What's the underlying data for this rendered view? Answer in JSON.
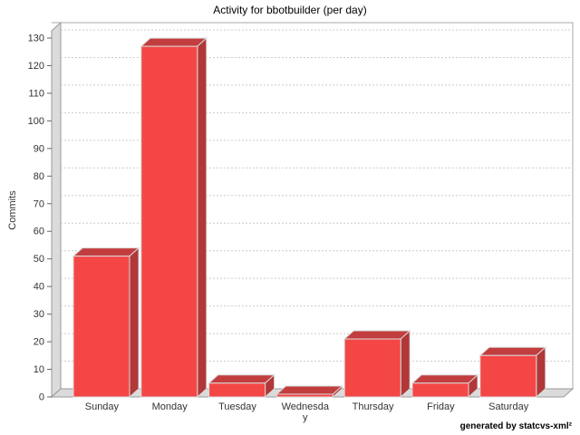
{
  "window": {
    "background": "#ffffff"
  },
  "header": {
    "title": "Activity for bbotbuilder (per day)"
  },
  "footer": {
    "credit": "generated by statcvs-xml²"
  },
  "chart_data": {
    "type": "bar",
    "title": "Activity for bbotbuilder (per day)",
    "xlabel": "",
    "ylabel": "Commits",
    "categories": [
      "Sunday",
      "Monday",
      "Tuesday",
      "Wednesday",
      "Thursday",
      "Friday",
      "Saturday"
    ],
    "category_label_lines": [
      [
        "Sunday"
      ],
      [
        "Monday"
      ],
      [
        "Tuesday"
      ],
      [
        "Wednesda",
        "y"
      ],
      [
        "Thursday"
      ],
      [
        "Friday"
      ],
      [
        "Saturday"
      ]
    ],
    "values": [
      51,
      127,
      5,
      1,
      21,
      5,
      15
    ],
    "ylim": [
      0,
      130
    ],
    "ytick_interval": 10,
    "yticks": [
      0,
      10,
      20,
      30,
      40,
      50,
      60,
      70,
      80,
      90,
      100,
      110,
      120,
      130
    ],
    "grid": "horizontal dashed",
    "legend_position": "none",
    "style": "3d-bars",
    "colors": {
      "bar_front": "#f54646",
      "bar_top": "#c23e3e",
      "bar_side": "#b03838",
      "bar_outline": "#d9d9d9",
      "wall_fill": "#dbdbdb",
      "wall_outline": "#989898",
      "plot_border": "#aaaaaa",
      "gridline": "#cccccc",
      "axis_text": "#333333",
      "tick_mark": "#666666",
      "background": "#ffffff"
    }
  }
}
